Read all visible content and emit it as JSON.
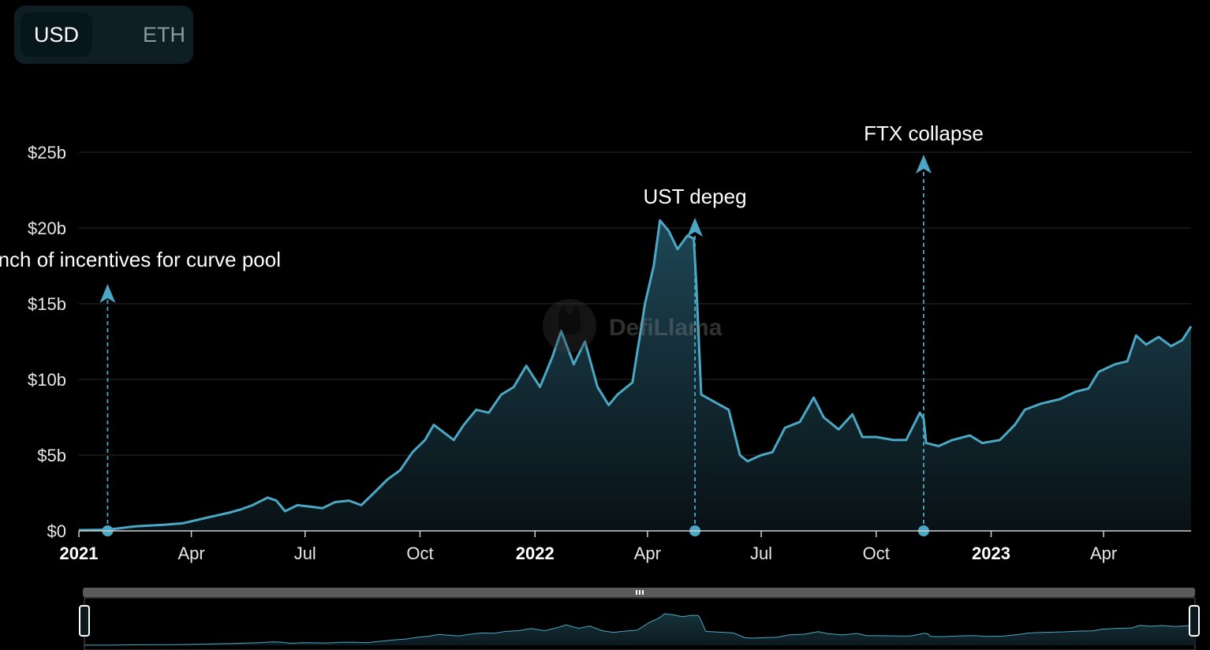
{
  "currency_toggle": {
    "options": [
      "USD",
      "ETH"
    ],
    "selected": "USD"
  },
  "watermark": "DefiLlama",
  "chart_data": {
    "type": "area",
    "title": "",
    "xlabel": "",
    "ylabel": "",
    "yunit": "$b",
    "ylim": [
      0,
      25
    ],
    "xlim": [
      "2021-01-01",
      "2023-06-10"
    ],
    "grid": true,
    "y_ticks": [
      {
        "value": 0,
        "label": "$0"
      },
      {
        "value": 5,
        "label": "$5b"
      },
      {
        "value": 10,
        "label": "$10b"
      },
      {
        "value": 15,
        "label": "$15b"
      },
      {
        "value": 20,
        "label": "$20b"
      },
      {
        "value": 25,
        "label": "$25b"
      }
    ],
    "x_ticks": [
      {
        "date": "2021-01-01",
        "label": "2021",
        "bold": true
      },
      {
        "date": "2021-04-01",
        "label": "Apr",
        "bold": false
      },
      {
        "date": "2021-07-01",
        "label": "Jul",
        "bold": false
      },
      {
        "date": "2021-10-01",
        "label": "Oct",
        "bold": false
      },
      {
        "date": "2022-01-01",
        "label": "2022",
        "bold": true
      },
      {
        "date": "2022-04-01",
        "label": "Apr",
        "bold": false
      },
      {
        "date": "2022-07-01",
        "label": "Jul",
        "bold": false
      },
      {
        "date": "2022-10-01",
        "label": "Oct",
        "bold": false
      },
      {
        "date": "2023-01-01",
        "label": "2023",
        "bold": true
      },
      {
        "date": "2023-04-01",
        "label": "Apr",
        "bold": false
      }
    ],
    "annotations": [
      {
        "date": "2021-01-24",
        "label": "Launch of incentives for curve pool"
      },
      {
        "date": "2022-05-09",
        "label": "UST depeg"
      },
      {
        "date": "2022-11-08",
        "label": "FTX collapse"
      }
    ],
    "series": [
      {
        "color": "#4ba8c4",
        "points": [
          [
            "2021-01-01",
            0.05
          ],
          [
            "2021-01-24",
            0.08
          ],
          [
            "2021-02-15",
            0.3
          ],
          [
            "2021-03-10",
            0.4
          ],
          [
            "2021-03-25",
            0.5
          ],
          [
            "2021-04-15",
            0.9
          ],
          [
            "2021-05-01",
            1.2
          ],
          [
            "2021-05-10",
            1.4
          ],
          [
            "2021-05-20",
            1.7
          ],
          [
            "2021-06-01",
            2.2
          ],
          [
            "2021-06-08",
            2.0
          ],
          [
            "2021-06-15",
            1.3
          ],
          [
            "2021-06-25",
            1.7
          ],
          [
            "2021-07-05",
            1.6
          ],
          [
            "2021-07-15",
            1.5
          ],
          [
            "2021-07-25",
            1.9
          ],
          [
            "2021-08-05",
            2.0
          ],
          [
            "2021-08-15",
            1.7
          ],
          [
            "2021-08-25",
            2.5
          ],
          [
            "2021-09-05",
            3.4
          ],
          [
            "2021-09-15",
            4.0
          ],
          [
            "2021-09-25",
            5.2
          ],
          [
            "2021-10-05",
            6.0
          ],
          [
            "2021-10-12",
            7.0
          ],
          [
            "2021-10-20",
            6.5
          ],
          [
            "2021-10-28",
            6.0
          ],
          [
            "2021-11-05",
            7.0
          ],
          [
            "2021-11-15",
            8.0
          ],
          [
            "2021-11-25",
            7.8
          ],
          [
            "2021-12-05",
            9.0
          ],
          [
            "2021-12-15",
            9.5
          ],
          [
            "2021-12-25",
            10.9
          ],
          [
            "2022-01-05",
            9.5
          ],
          [
            "2022-01-15",
            11.5
          ],
          [
            "2022-01-22",
            13.2
          ],
          [
            "2022-02-01",
            11.0
          ],
          [
            "2022-02-10",
            12.5
          ],
          [
            "2022-02-20",
            9.5
          ],
          [
            "2022-03-01",
            8.3
          ],
          [
            "2022-03-08",
            9.0
          ],
          [
            "2022-03-20",
            9.8
          ],
          [
            "2022-03-30",
            15.0
          ],
          [
            "2022-04-06",
            17.5
          ],
          [
            "2022-04-11",
            20.5
          ],
          [
            "2022-04-18",
            19.8
          ],
          [
            "2022-04-25",
            18.6
          ],
          [
            "2022-05-03",
            19.5
          ],
          [
            "2022-05-08",
            19.3
          ],
          [
            "2022-05-10",
            16.5
          ],
          [
            "2022-05-14",
            9.0
          ],
          [
            "2022-05-25",
            8.5
          ],
          [
            "2022-06-05",
            8.0
          ],
          [
            "2022-06-14",
            5.0
          ],
          [
            "2022-06-20",
            4.6
          ],
          [
            "2022-07-01",
            5.0
          ],
          [
            "2022-07-10",
            5.2
          ],
          [
            "2022-07-20",
            6.8
          ],
          [
            "2022-08-01",
            7.2
          ],
          [
            "2022-08-12",
            8.8
          ],
          [
            "2022-08-20",
            7.5
          ],
          [
            "2022-09-01",
            6.7
          ],
          [
            "2022-09-12",
            7.7
          ],
          [
            "2022-09-20",
            6.2
          ],
          [
            "2022-10-01",
            6.2
          ],
          [
            "2022-10-15",
            6.0
          ],
          [
            "2022-10-25",
            6.0
          ],
          [
            "2022-11-05",
            7.8
          ],
          [
            "2022-11-08",
            7.4
          ],
          [
            "2022-11-10",
            5.8
          ],
          [
            "2022-11-20",
            5.6
          ],
          [
            "2022-12-01",
            6.0
          ],
          [
            "2022-12-15",
            6.3
          ],
          [
            "2022-12-25",
            5.8
          ],
          [
            "2023-01-08",
            6.0
          ],
          [
            "2023-01-20",
            7.0
          ],
          [
            "2023-01-28",
            8.0
          ],
          [
            "2023-02-10",
            8.4
          ],
          [
            "2023-02-25",
            8.7
          ],
          [
            "2023-03-10",
            9.2
          ],
          [
            "2023-03-20",
            9.4
          ],
          [
            "2023-03-28",
            10.5
          ],
          [
            "2023-04-10",
            11.0
          ],
          [
            "2023-04-20",
            11.2
          ],
          [
            "2023-04-27",
            12.9
          ],
          [
            "2023-05-05",
            12.3
          ],
          [
            "2023-05-15",
            12.8
          ],
          [
            "2023-05-25",
            12.2
          ],
          [
            "2023-06-03",
            12.6
          ],
          [
            "2023-06-10",
            13.5
          ]
        ]
      }
    ]
  }
}
